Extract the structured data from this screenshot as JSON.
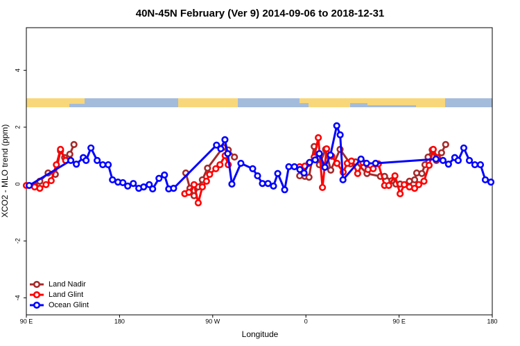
{
  "chart_data": {
    "type": "line",
    "title": "40N-45N February (Ver 9)   2014-09-06 to 2018-12-31",
    "x_label": "Longitude",
    "y_label": "XCO2 - MLO trend (ppm)",
    "xlim": [
      90,
      540
    ],
    "ylim": [
      -4.6,
      5.5
    ],
    "xticks": [
      {
        "value": 90,
        "label": "90 E"
      },
      {
        "value": 180,
        "label": "180"
      },
      {
        "value": 270,
        "label": "90 W"
      },
      {
        "value": 360,
        "label": "0"
      },
      {
        "value": 450,
        "label": "90 E"
      },
      {
        "value": 540,
        "label": "180"
      }
    ],
    "yticks": [
      -4,
      -2,
      0,
      2,
      4
    ],
    "legend_position": "bottom-left",
    "series": [
      {
        "name": "Land Nadir",
        "color": "#a52a2a",
        "x": [
          98,
          103,
          111,
          118,
          123,
          127,
          132,
          136,
          238,
          244,
          248,
          252,
          256,
          260,
          265,
          280,
          285,
          291,
          294,
          354,
          359,
          363,
          368,
          373,
          379,
          384,
          393,
          403,
          408,
          419,
          432,
          436,
          443,
          447,
          451,
          460,
          465,
          467,
          472,
          475,
          478,
          482,
          486,
          491,
          495
        ],
        "values": [
          -0.05,
          0.1,
          0.39,
          0.34,
          1.17,
          0.93,
          1.05,
          1.39,
          null,
          0.39,
          -0.15,
          -0.41,
          -0.1,
          0.15,
          0.56,
          1.29,
          1.2,
          0.95,
          null,
          0.29,
          0.27,
          0.24,
          1.32,
          0.68,
          1.22,
          0.49,
          1.22,
          0.71,
          0.78,
          0.37,
          0.27,
          0.27,
          0.12,
          0.0,
          0.0,
          0.1,
          0.15,
          0.39,
          0.37,
          0.68,
          0.95,
          1.2,
          0.83,
          1.1,
          1.39
        ]
      },
      {
        "name": "Land Glint",
        "color": "#ff0000",
        "x": [
          90,
          98,
          103,
          109,
          114,
          119,
          123,
          128,
          239,
          243,
          247,
          252,
          256,
          260,
          264,
          267,
          273,
          277,
          282,
          285,
          289,
          354,
          359,
          363,
          368,
          372,
          376,
          380,
          385,
          390,
          396,
          400,
          404,
          410,
          415,
          420,
          425,
          430,
          436,
          440,
          446,
          451,
          455,
          460,
          465,
          469,
          474,
          479,
          483,
          487
        ],
        "values": [
          -0.05,
          -0.1,
          -0.15,
          -0.02,
          0.12,
          0.68,
          1.22,
          0.83,
          null,
          -0.34,
          -0.29,
          -0.02,
          -0.66,
          -0.1,
          0.1,
          0.34,
          0.54,
          0.68,
          1.0,
          0.68,
          null,
          0.61,
          0.63,
          0.73,
          0.95,
          1.63,
          -0.12,
          1.24,
          0.98,
          0.73,
          0.42,
          0.73,
          0.81,
          0.37,
          0.76,
          0.51,
          0.54,
          0.71,
          -0.05,
          -0.05,
          0.29,
          -0.34,
          -0.02,
          -0.1,
          -0.15,
          -0.02,
          0.1,
          0.66,
          1.22,
          0.93
        ]
      },
      {
        "name": "Ocean Glint",
        "color": "#0000ff",
        "x": [
          92.7,
          132.9,
          138.3,
          145.0,
          147.7,
          152.4,
          158.4,
          163.8,
          169.1,
          173.2,
          178.5,
          183.2,
          187.9,
          193.3,
          198.6,
          203.3,
          208.7,
          212.0,
          218.1,
          223.4,
          227.5,
          232.2,
          273.7,
          277.8,
          281.8,
          284.5,
          288.5,
          297.2,
          308.6,
          313.3,
          318.0,
          323.4,
          328.7,
          332.8,
          339.5,
          343.5,
          348.9,
          354.2,
          358.2,
          363.6,
          369.0,
          373.0,
          378.4,
          383.7,
          389.8,
          393.1,
          395.8,
          413.2,
          418.6,
          427.3,
          485.6,
          492.4,
          497.7,
          503.8,
          507.1,
          512.5,
          517.9,
          523.2,
          528.6,
          533.3,
          538.7
        ],
        "values": [
          -0.05,
          0.83,
          0.7,
          0.93,
          0.83,
          1.27,
          0.83,
          0.68,
          0.68,
          0.15,
          0.07,
          0.05,
          -0.07,
          0.02,
          -0.15,
          -0.1,
          -0.02,
          -0.17,
          0.2,
          0.32,
          -0.17,
          -0.15,
          1.37,
          1.24,
          1.56,
          1.07,
          0.0,
          0.73,
          0.54,
          0.29,
          0.02,
          0.02,
          -0.07,
          0.37,
          -0.2,
          0.61,
          0.61,
          0.51,
          0.39,
          0.76,
          0.85,
          1.07,
          0.59,
          1.02,
          2.05,
          1.73,
          0.15,
          0.88,
          0.73,
          0.73,
          0.88,
          0.83,
          0.7,
          0.93,
          0.83,
          1.27,
          0.83,
          0.68,
          0.68,
          0.15,
          0.07
        ]
      }
    ]
  }
}
